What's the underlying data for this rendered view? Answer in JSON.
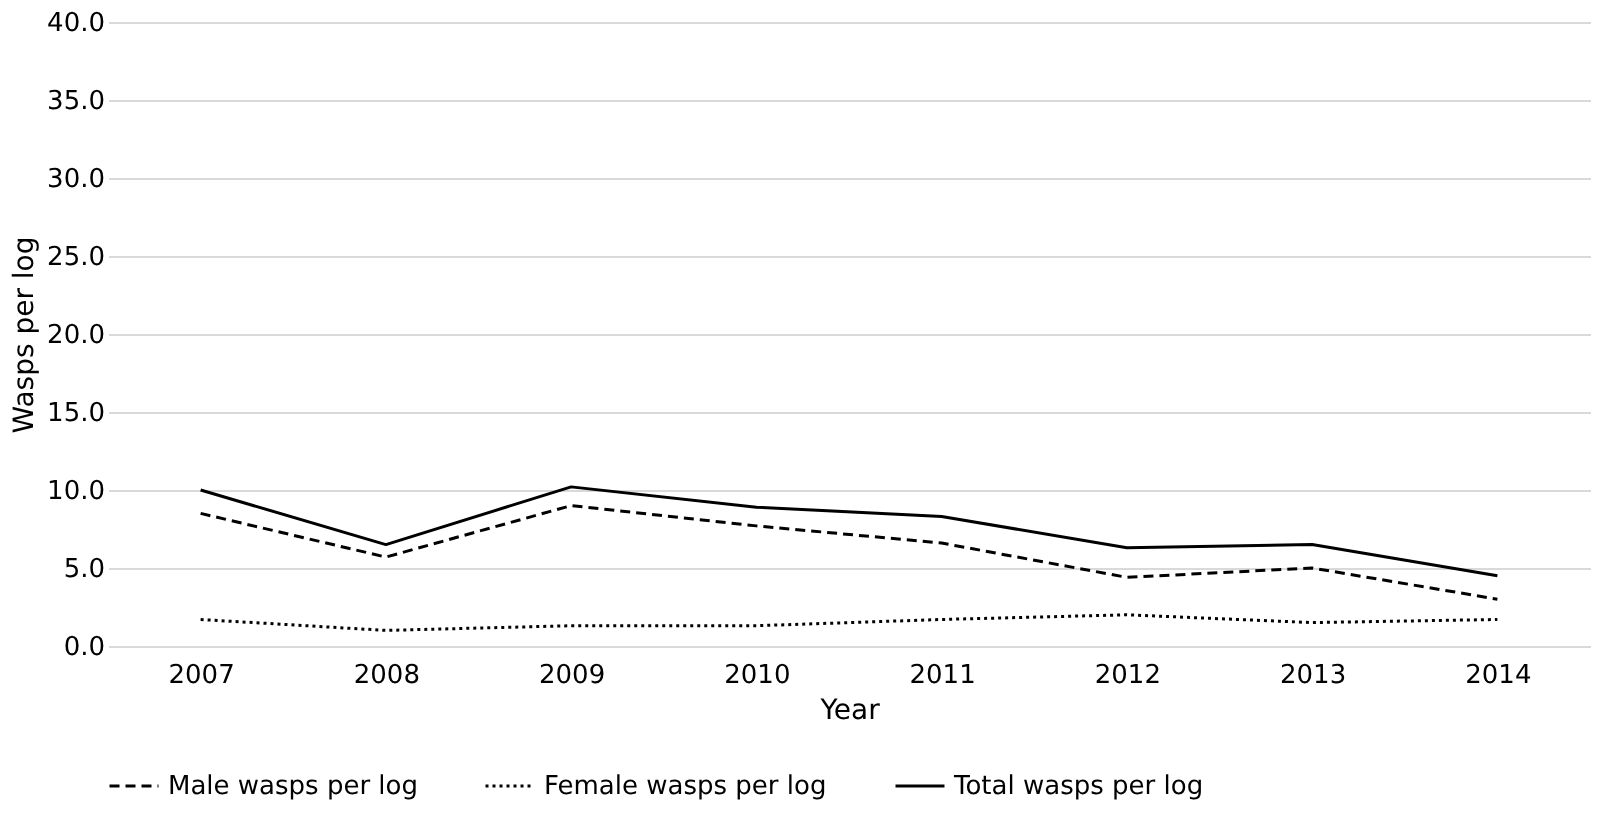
{
  "chart_data": {
    "type": "line",
    "xlabel": "Year",
    "ylabel": "Wasps per log",
    "categories": [
      "2007",
      "2008",
      "2009",
      "2010",
      "2011",
      "2012",
      "2013",
      "2014"
    ],
    "series": [
      {
        "name": "Male wasps per log",
        "color": "#000000",
        "line_style": "dashed",
        "values": [
          8.5,
          5.7,
          9.0,
          7.7,
          6.6,
          4.4,
          5.0,
          3.0
        ]
      },
      {
        "name": "Female wasps per log",
        "color": "#000000",
        "line_style": "dotted",
        "values": [
          1.7,
          1.0,
          1.3,
          1.3,
          1.7,
          2.0,
          1.5,
          1.7
        ]
      },
      {
        "name": "Total wasps per log",
        "color": "#000000",
        "line_style": "solid",
        "values": [
          10.0,
          6.5,
          10.2,
          8.9,
          8.3,
          6.3,
          6.5,
          4.5
        ]
      }
    ],
    "ylim": [
      0,
      40
    ],
    "yticks": [
      {
        "value": 0,
        "label": "0.0"
      },
      {
        "value": 5,
        "label": "5.0"
      },
      {
        "value": 10,
        "label": "10.0"
      },
      {
        "value": 15,
        "label": "15.0"
      },
      {
        "value": 20,
        "label": "20.0"
      },
      {
        "value": 25,
        "label": "25.0"
      },
      {
        "value": 30,
        "label": "30.0"
      },
      {
        "value": 35,
        "label": "35.0"
      },
      {
        "value": 40,
        "label": "40.0"
      }
    ],
    "grid": "y",
    "legend": "bottom",
    "marker": "none"
  }
}
